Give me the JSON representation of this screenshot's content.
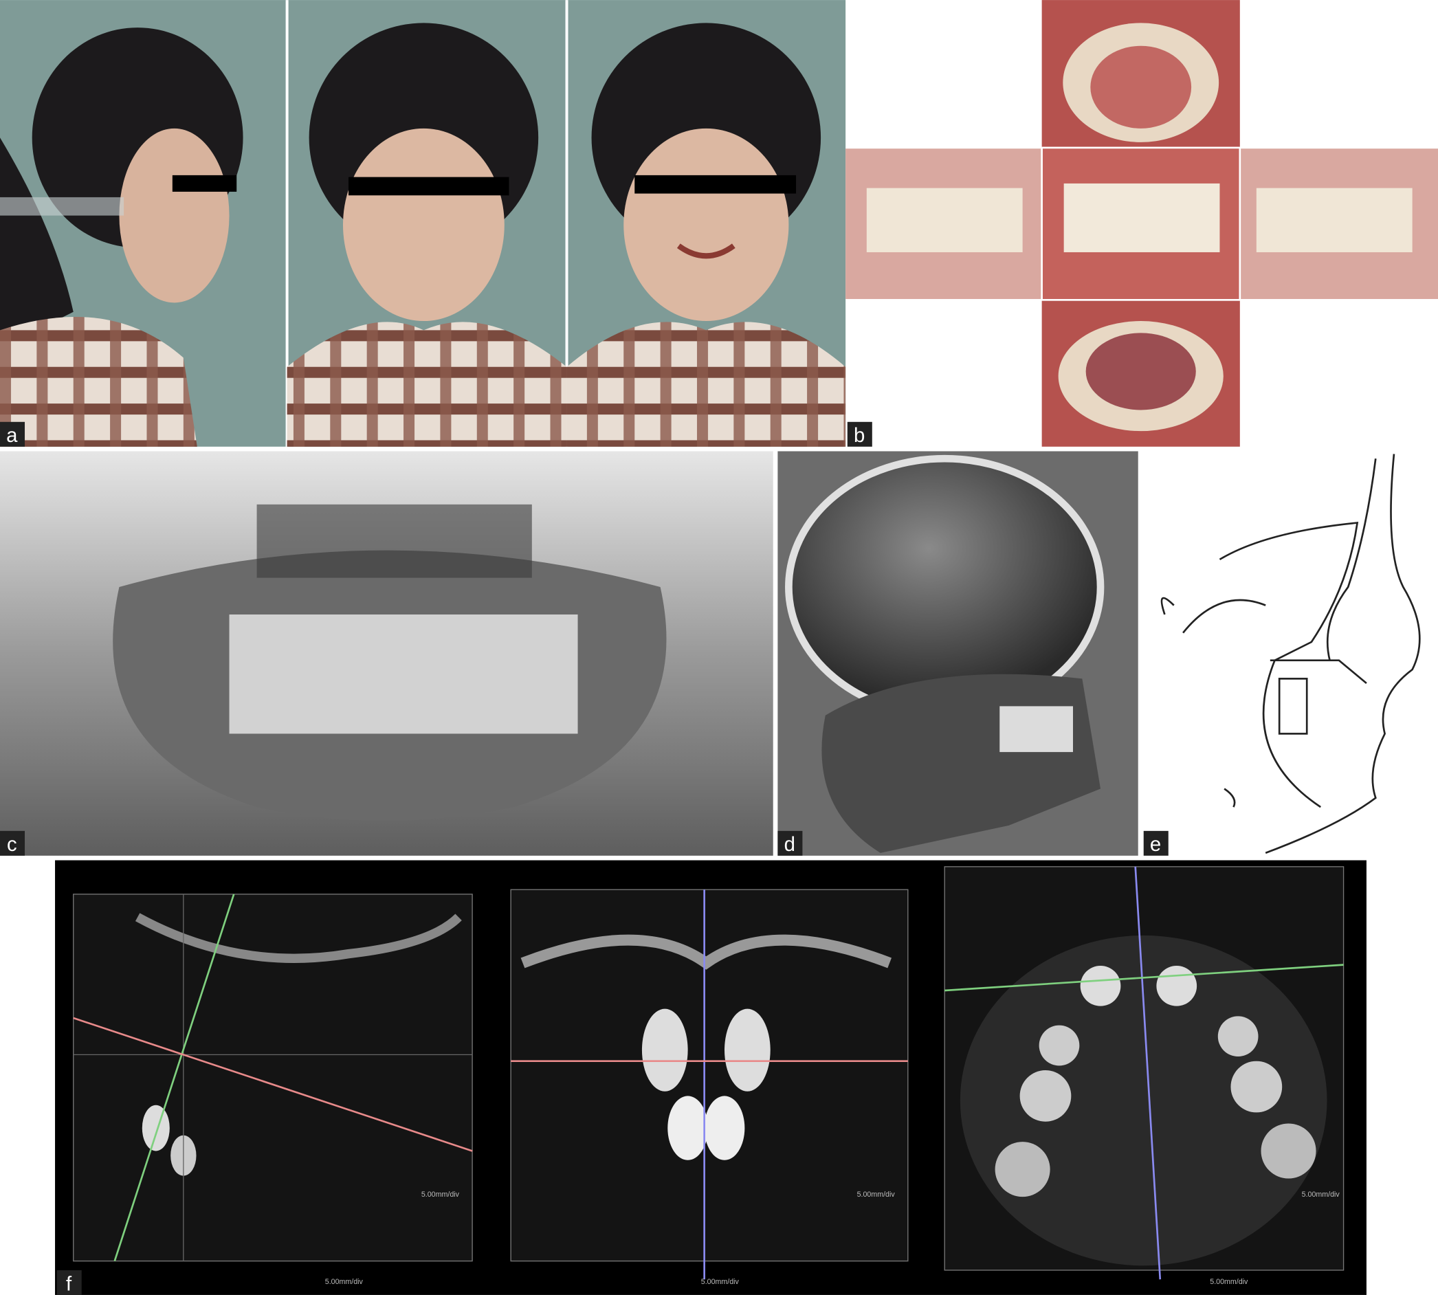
{
  "panels": [
    {
      "label": "a"
    },
    {
      "label": "b"
    },
    {
      "label": "c"
    },
    {
      "label": "d"
    },
    {
      "label": "e"
    },
    {
      "label": "f",
      "scale_labels": [
        "5.00mm/div",
        "5.00mm/div",
        "5.00mm/div",
        "5.00mm/div",
        "5.00mm/div",
        "5.00mm/div"
      ]
    }
  ]
}
